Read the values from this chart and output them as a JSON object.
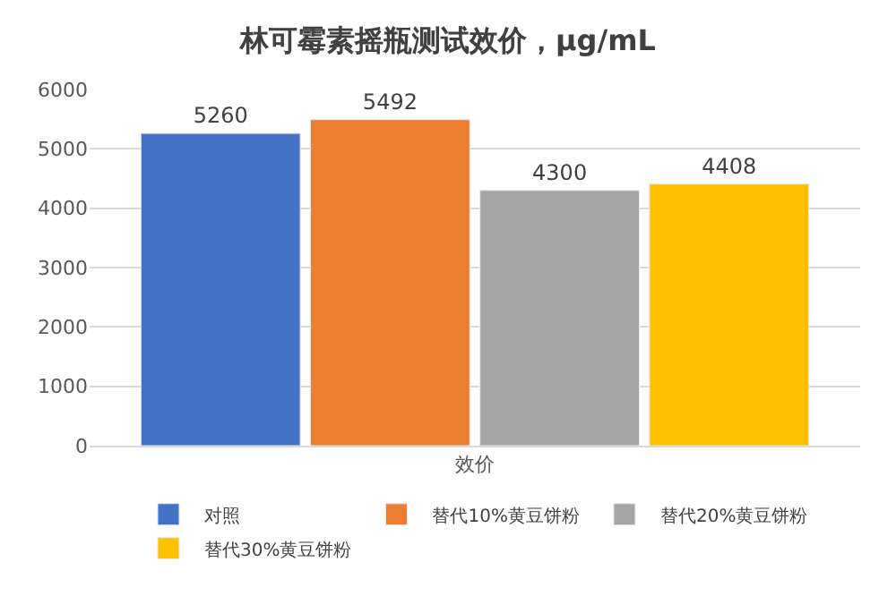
{
  "chart_data": {
    "type": "bar",
    "title": "林可霉素摇瓶测试效价，μg/mL",
    "categories": [
      "效价"
    ],
    "series": [
      {
        "name": "对照",
        "color": "#4472c4",
        "values": [
          5260
        ]
      },
      {
        "name": "替代10%黄豆饼粉",
        "color": "#ed7d31",
        "values": [
          5492
        ]
      },
      {
        "name": "替代20%黄豆饼粉",
        "color": "#a5a5a5",
        "values": [
          4300
        ]
      },
      {
        "name": "替代30%黄豆饼粉",
        "color": "#ffc000",
        "values": [
          4408
        ]
      }
    ],
    "ylim": [
      0,
      6000
    ],
    "yticks": [
      0,
      1000,
      2000,
      3000,
      4000,
      5000,
      6000
    ],
    "grid": "y",
    "legend": "bottom",
    "data_labels": true
  }
}
